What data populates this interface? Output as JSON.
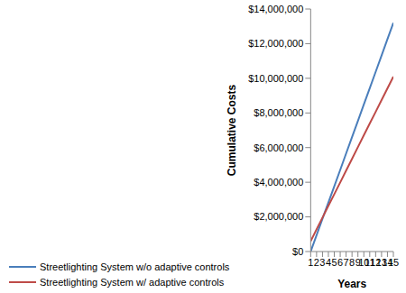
{
  "chart_data": {
    "type": "line",
    "x_label": "Years",
    "y_label": "Cumulative Costs",
    "x": [
      1,
      2,
      3,
      4,
      5,
      6,
      7,
      8,
      9,
      10,
      11,
      12,
      13,
      14,
      15
    ],
    "xlim": [
      1,
      15
    ],
    "xticks": [
      1,
      2,
      3,
      4,
      5,
      6,
      7,
      8,
      9,
      10,
      11,
      12,
      13,
      14,
      15
    ],
    "ylim": [
      0,
      14000000
    ],
    "yticks": [
      {
        "value": 0,
        "label": "$0"
      },
      {
        "value": 2000000,
        "label": "$2,000,000"
      },
      {
        "value": 4000000,
        "label": "$4,000,000"
      },
      {
        "value": 6000000,
        "label": "$6,000,000"
      },
      {
        "value": 8000000,
        "label": "$8,000,000"
      },
      {
        "value": 10000000,
        "label": "$10,000,000"
      },
      {
        "value": 12000000,
        "label": "$12,000,000"
      },
      {
        "value": 14000000,
        "label": "$14,000,000"
      }
    ],
    "grid": false,
    "legend": "bottom",
    "series": [
      {
        "name": "Streetlighting System w/o adaptive controls",
        "color": "#4a7ebb",
        "values": [
          0,
          940000,
          1890000,
          2830000,
          3770000,
          4710000,
          5660000,
          6600000,
          7540000,
          8490000,
          9430000,
          10370000,
          11310000,
          12260000,
          13200000
        ]
      },
      {
        "name": "Streetlighting System w/ adaptive controls",
        "color": "#be4b48",
        "values": [
          600000,
          1280000,
          1960000,
          2640000,
          3310000,
          3990000,
          4670000,
          5350000,
          6030000,
          6710000,
          7390000,
          8060000,
          8740000,
          9420000,
          10100000
        ]
      }
    ]
  }
}
